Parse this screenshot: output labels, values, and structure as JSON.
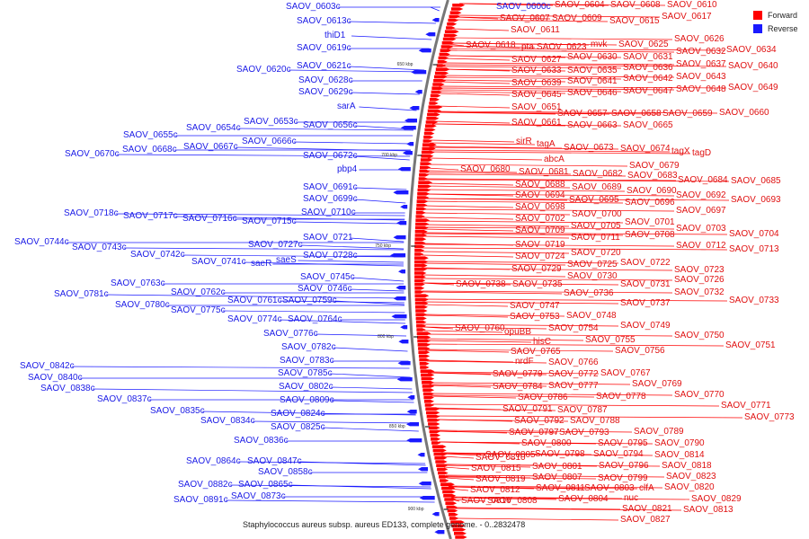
{
  "colors": {
    "forward": "#ff0000",
    "reverse": "#1a1aff",
    "backbone": "#777777"
  },
  "legend": {
    "forward_label": "Forward",
    "reverse_label": "Reverse"
  },
  "caption": "Staphylococcus aureus subsp. aureus ED133, complete genome. - 0..2832478",
  "ticks": [
    "650 kbp",
    "700 kbp",
    "750 kbp",
    "800 kbp",
    "850 kbp",
    "900 kbp"
  ],
  "reverse_genes": [
    "SAOV_0603c",
    "SAOV_0613c",
    "thiD1",
    "SAOV_0619c",
    "SAOV_0620c",
    "SAOV_0621c",
    "SAOV_0628c",
    "SAOV_0629c",
    "sarA",
    "SAOV_0653c",
    "SAOV_0654c",
    "SAOV_0656c",
    "SAOV_0655c",
    "SAOV_0666c",
    "SAOV_0667c",
    "SAOV_0668c",
    "SAOV_0670c",
    "SAOV_0672c",
    "pbp4",
    "SAOV_0691c",
    "SAOV_0699c",
    "SAOV_0710c",
    "SAOV_0718c",
    "SAOV_0717c",
    "SAOV_0716c",
    "SAOV_0715c",
    "SAOV_0721",
    "SAOV_0744c",
    "SAOV_0743c",
    "SAOV_0727c",
    "SAOV_0728c",
    "SAOV_0742c",
    "SAOV_0741c",
    "saeR",
    "saeS",
    "SAOV_0745c",
    "SAOV_0763c",
    "SAOV_0746c",
    "SAOV_0781c",
    "SAOV_0762c",
    "SAOV_0761c",
    "SAOV_0759c",
    "SAOV_0780c",
    "SAOV_0775c",
    "SAOV_0774c",
    "SAOV_0764c",
    "SAOV_0776c",
    "SAOV_0782c",
    "SAOV_0783c",
    "SAOV_0842c",
    "SAOV_0785c",
    "SAOV_0840c",
    "SAOV_0802c",
    "SAOV_0838c",
    "SAOV_0837c",
    "SAOV_0809c",
    "SAOV_0835c",
    "SAOV_0824c",
    "SAOV_0834c",
    "SAOV_0825c",
    "SAOV_0836c",
    "SAOV_0864c",
    "SAOV_0847c",
    "SAOV_0858c",
    "SAOV_0882c",
    "SAOV_0865c",
    "SAOV_0873c",
    "SAOV_0891c",
    "SAOV_0600c"
  ],
  "forward_genes": [
    "SAOV_0604",
    "SAOV_0608",
    "SAOV_0610",
    "SAOV_0607",
    "SAOV_0609",
    "SAOV_0615",
    "SAOV_0617",
    "SAOV_0611",
    "SAOV_0618",
    "pta",
    "SAOV_0623",
    "mvk",
    "SAOV_0625",
    "SAOV_0626",
    "SAOV_0627",
    "SAOV_0630",
    "SAOV_0631",
    "SAOV_0632",
    "SAOV_0634",
    "SAOV_0633",
    "SAOV_0635",
    "SAOV_0636",
    "SAOV_0637",
    "SAOV_0640",
    "SAOV_0639",
    "SAOV_0641",
    "SAOV_0642",
    "SAOV_0643",
    "SAOV_0645",
    "SAOV_0646",
    "SAOV_0647",
    "SAOV_0648",
    "SAOV_0649",
    "SAOV_0651",
    "SAOV_0657",
    "SAOV_0658",
    "SAOV_0659",
    "SAOV_0660",
    "SAOV_0661",
    "SAOV_0663",
    "SAOV_0665",
    "sirR",
    "tagA",
    "SAOV_0673",
    "SAOV_0674",
    "tagX",
    "tagD",
    "abcA",
    "SAOV_0679",
    "SAOV_0680",
    "SAOV_0681",
    "SAOV_0682",
    "SAOV_0683",
    "SAOV_0684",
    "SAOV_0685",
    "SAOV_0688",
    "SAOV_0689",
    "SAOV_0690",
    "SAOV_0692",
    "SAOV_0693",
    "SAOV_0694",
    "SAOV_0695",
    "SAOV_0696",
    "SAOV_0697",
    "SAOV_0698",
    "SAOV_0700",
    "SAOV_0702",
    "SAOV_0705",
    "SAOV_0701",
    "SAOV_0703",
    "SAOV_0704",
    "SAOV_0709",
    "SAOV_0711",
    "SAOV_0708",
    "SAOV_0712",
    "SAOV_0713",
    "SAOV_0719",
    "SAOV_0720",
    "SAOV_0724",
    "SAOV_0725",
    "SAOV_0722",
    "SAOV_0723",
    "SAOV_0729",
    "SAOV_0730",
    "SAOV_0726",
    "SAOV_0738",
    "SAOV_0735",
    "SAOV_0731",
    "SAOV_0732",
    "SAOV_0736",
    "SAOV_0733",
    "SAOV_0737",
    "SAOV_0747",
    "SAOV_0753",
    "SAOV_0748",
    "SAOV_0749",
    "SAOV_0760",
    "opuBB",
    "SAOV_0754",
    "SAOV_0750",
    "hisC",
    "SAOV_0755",
    "SAOV_0751",
    "SAOV_0765",
    "SAOV_0756",
    "nrdF",
    "SAOV_0766",
    "SAOV_0779",
    "SAOV_0772",
    "SAOV_0767",
    "SAOV_0784",
    "SAOV_0777",
    "SAOV_0769",
    "SAOV_0786",
    "SAOV_0778",
    "SAOV_0770",
    "SAOV_0791",
    "SAOV_0787",
    "SAOV_0771",
    "SAOV_0792",
    "SAOV_0788",
    "SAOV_0773",
    "SAOV_0797",
    "SAOV_0793",
    "SAOV_0789",
    "SAOV_0800",
    "SAOV_0795",
    "SAOV_0790",
    "SAOV_0805",
    "SAOV_0798",
    "SAOV_0794",
    "SAOV_0814",
    "SAOV_0810",
    "SAOV_0801",
    "SAOV_0796",
    "SAOV_0818",
    "SAOV_0815",
    "SAOV_0807",
    "SAOV_0799",
    "SAOV_0823",
    "SAOV_0819",
    "SAOV_0811",
    "SAOV_0803",
    "clfA",
    "SAOV_0820",
    "SAOV_0812",
    "SAOV_0804",
    "nuc",
    "SAOV_0829",
    "SAOV_0816",
    "SAOV_0808",
    "SAOV_0821",
    "SAOV_0813",
    "SAOV_0827"
  ]
}
